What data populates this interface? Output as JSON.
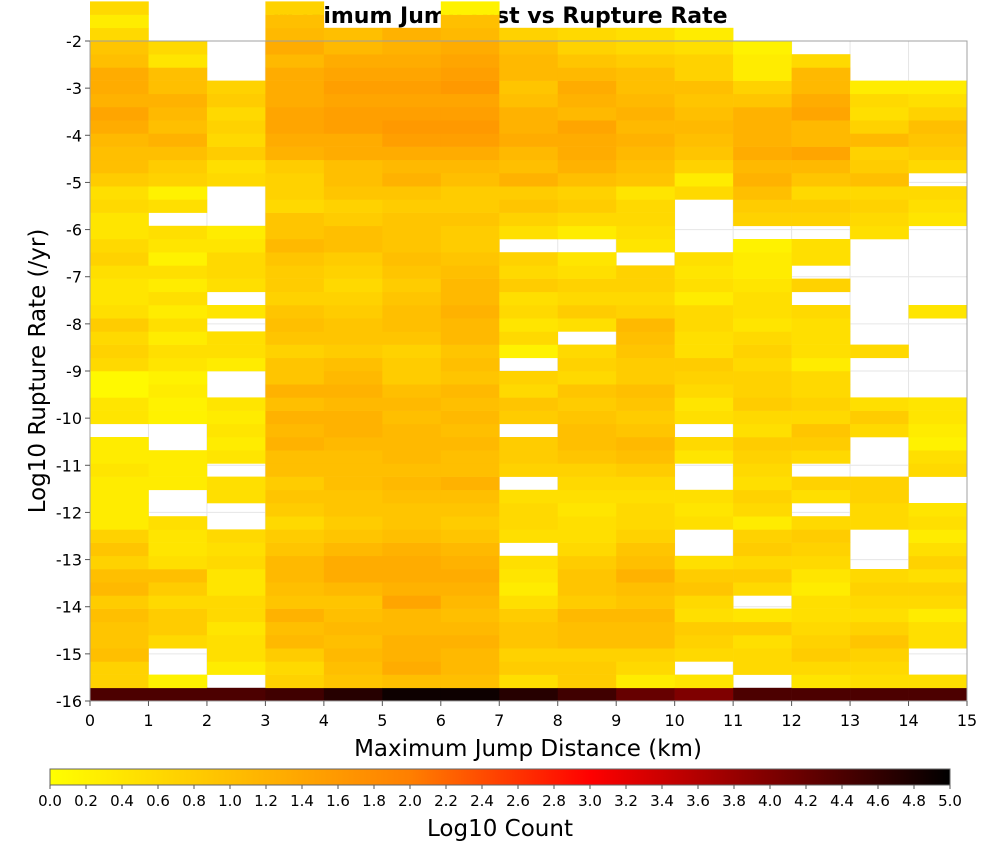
{
  "chart_data": {
    "type": "heatmap",
    "title": "Maximum Jump Dist vs Rupture Rate",
    "xlabel": "Maximum Jump Distance (km)",
    "ylabel": "Log10 Rupture Rate (/yr)",
    "xlim": [
      0,
      15
    ],
    "ylim": [
      -16,
      -2
    ],
    "x_ticks": [
      "0",
      "1",
      "2",
      "3",
      "4",
      "5",
      "6",
      "7",
      "8",
      "9",
      "10",
      "11",
      "12",
      "13",
      "14",
      "15"
    ],
    "y_ticks": [
      "-2",
      "-3",
      "-4",
      "-5",
      "-6",
      "-7",
      "-8",
      "-9",
      "-10",
      "-11",
      "-12",
      "-13",
      "-14",
      "-15",
      "-16"
    ],
    "x_bin_width": 1,
    "y_bin_height": 0.28,
    "y_bin_start": -16,
    "colorbar": {
      "label": "Log10 Count",
      "range": [
        0,
        5
      ],
      "ticks": [
        "0.0",
        "0.2",
        "0.4",
        "0.6",
        "0.8",
        "1.0",
        "1.2",
        "1.4",
        "1.6",
        "1.8",
        "2.0",
        "2.2",
        "2.4",
        "2.6",
        "2.8",
        "3.0",
        "3.2",
        "3.4",
        "3.6",
        "3.8",
        "4.0",
        "4.2",
        "4.4",
        "4.6",
        "4.8",
        "5.0"
      ],
      "colors": [
        "#ffff00",
        "#ffbf00",
        "#ff7f00",
        "#ff0000",
        "#7f0000",
        "#000000"
      ]
    },
    "columns": [
      {
        "x": 0,
        "values": [
          4.4,
          0.7,
          0.7,
          1.0,
          0.9,
          0.9,
          1.0,
          0.8,
          1.1,
          1.0,
          0.7,
          0.9,
          0.7,
          0.3,
          0.3,
          0.3,
          0.3,
          0.4,
          0.3,
          0.3,
          null,
          0.4,
          0.4,
          0.1,
          0.1,
          0.6,
          0.7,
          0.6,
          0.8,
          0.5,
          0.4,
          0.4,
          0.5,
          0.7,
          0.6,
          0.4,
          0.4,
          0.6,
          0.5,
          0.8,
          1.0,
          1.0,
          1.1,
          1.3,
          1.4,
          1.2,
          1.3,
          1.3,
          1.0,
          0.9,
          0.6,
          0.3,
          0.6
        ]
      },
      {
        "x": 1,
        "values": [
          4.4,
          0.2,
          null,
          null,
          0.6,
          0.8,
          0.8,
          0.6,
          0.8,
          1.0,
          0.5,
          0.4,
          0.4,
          0.5,
          null,
          null,
          0.3,
          0.3,
          0.3,
          null,
          null,
          0.2,
          0.2,
          0.3,
          0.2,
          0.4,
          0.5,
          0.3,
          0.5,
          0.3,
          0.5,
          0.3,
          0.5,
          0.2,
          0.4,
          0.5,
          null,
          0.5,
          0.2,
          0.7,
          0.8,
          1.0,
          1.2,
          1.0,
          1.1,
          1.2,
          1.0,
          1.0,
          0.4,
          0.6
        ]
      },
      {
        "x": 2,
        "values": [
          4.4,
          null,
          0.3,
          0.5,
          0.5,
          0.4,
          0.6,
          0.6,
          0.4,
          0.4,
          0.6,
          0.5,
          0.6,
          null,
          null,
          0.5,
          0.5,
          null,
          0.4,
          0.3,
          0.4,
          0.3,
          0.4,
          null,
          null,
          0.3,
          0.5,
          0.5,
          null,
          0.4,
          null,
          0.5,
          0.6,
          0.6,
          0.4,
          0.3,
          null,
          null,
          null,
          0.6,
          0.5,
          0.8,
          0.6,
          0.7,
          0.6,
          0.8,
          0.7
        ]
      },
      {
        "x": 3,
        "values": [
          4.5,
          0.7,
          0.6,
          0.8,
          1.1,
          1.0,
          1.2,
          0.9,
          1.0,
          1.1,
          1.1,
          0.9,
          0.8,
          0.6,
          0.8,
          0.9,
          0.8,
          1.0,
          1.0,
          1.2,
          1.1,
          1.2,
          1.0,
          1.2,
          0.9,
          0.9,
          0.7,
          0.9,
          1.0,
          0.9,
          0.7,
          0.8,
          0.8,
          0.9,
          1.1,
          0.9,
          0.9,
          0.6,
          0.7,
          0.7,
          0.8,
          1.2,
          1.3,
          1.4,
          1.4,
          1.3,
          1.3,
          1.3,
          1.1,
          1.3,
          1.1,
          1.0,
          0.7
        ]
      },
      {
        "x": 4,
        "values": [
          4.7,
          0.9,
          1.0,
          1.1,
          1.0,
          1.1,
          1.0,
          0.9,
          1.1,
          1.3,
          1.3,
          1.1,
          0.9,
          0.8,
          0.9,
          0.9,
          1.0,
          1.0,
          1.0,
          1.1,
          1.2,
          1.2,
          1.1,
          1.2,
          1.1,
          1.0,
          0.8,
          0.9,
          0.9,
          0.8,
          0.7,
          0.6,
          0.7,
          0.8,
          1.0,
          1.0,
          0.8,
          0.7,
          0.9,
          1.0,
          1.0,
          1.3,
          1.3,
          1.5,
          1.5,
          1.4,
          1.5,
          1.4,
          1.3,
          1.1,
          1.0
        ]
      },
      {
        "x": 5,
        "values": [
          4.9,
          1.0,
          1.3,
          1.2,
          1.2,
          1.1,
          1.1,
          1.4,
          1.2,
          1.3,
          1.3,
          1.2,
          1.0,
          0.9,
          0.9,
          1.0,
          1.1,
          1.0,
          1.1,
          1.1,
          1.1,
          1.0,
          1.1,
          1.0,
          0.8,
          0.8,
          0.7,
          0.9,
          1.0,
          1.0,
          0.9,
          0.8,
          0.9,
          1.0,
          0.9,
          0.9,
          0.9,
          0.8,
          0.9,
          1.2,
          1.1,
          1.3,
          1.5,
          1.6,
          1.5,
          1.4,
          1.5,
          1.4,
          1.3,
          1.2,
          1.2
        ]
      },
      {
        "x": 6,
        "values": [
          4.9,
          1.0,
          1.1,
          1.1,
          1.2,
          1.1,
          1.0,
          1.1,
          1.2,
          1.3,
          1.2,
          1.1,
          0.9,
          0.8,
          0.9,
          1.0,
          1.2,
          1.0,
          1.0,
          1.1,
          1.0,
          1.1,
          1.0,
          1.1,
          0.9,
          1.0,
          0.9,
          1.1,
          1.1,
          1.2,
          1.1,
          1.1,
          1.0,
          0.9,
          0.8,
          0.8,
          0.9,
          0.8,
          0.8,
          1.0,
          1.1,
          1.3,
          1.5,
          1.6,
          1.5,
          1.4,
          1.6,
          1.5,
          1.4,
          1.3,
          1.1,
          1.0,
          0.2
        ]
      },
      {
        "x": 7,
        "values": [
          4.7,
          0.5,
          0.8,
          0.7,
          0.9,
          0.9,
          0.8,
          0.5,
          0.3,
          0.4,
          0.5,
          null,
          0.5,
          0.6,
          0.6,
          0.5,
          null,
          0.7,
          0.8,
          0.8,
          null,
          0.8,
          0.9,
          0.6,
          0.7,
          null,
          0.2,
          0.6,
          0.4,
          0.6,
          0.5,
          0.8,
          0.6,
          0.7,
          null,
          0.5,
          0.7,
          0.9,
          0.8,
          1.2,
          1.0,
          1.1,
          1.3,
          1.2,
          1.2,
          1.0,
          0.9,
          1.1,
          1.1,
          1.0,
          0.7
        ]
      },
      {
        "x": 8,
        "values": [
          4.5,
          0.8,
          0.8,
          0.7,
          1.0,
          1.0,
          1.1,
          0.8,
          0.9,
          0.9,
          0.8,
          0.6,
          0.5,
          0.5,
          0.4,
          0.5,
          0.6,
          0.7,
          0.9,
          1.0,
          1.0,
          0.9,
          0.8,
          0.9,
          0.6,
          0.7,
          0.6,
          null,
          0.5,
          0.8,
          0.6,
          0.7,
          0.5,
          0.4,
          null,
          0.3,
          0.6,
          0.8,
          0.7,
          1.0,
          1.2,
          1.3,
          1.3,
          1.4,
          1.1,
          1.2,
          1.3,
          1.1,
          0.9,
          0.7,
          0.6
        ]
      },
      {
        "x": 9,
        "values": [
          4.2,
          0.3,
          0.6,
          0.7,
          1.0,
          1.0,
          1.1,
          0.9,
          1.0,
          1.2,
          1.0,
          0.9,
          0.7,
          0.6,
          0.6,
          0.5,
          0.6,
          0.8,
          1.0,
          1.1,
          0.9,
          0.8,
          0.9,
          1.0,
          0.8,
          0.8,
          0.9,
          1.0,
          1.1,
          0.7,
          0.6,
          0.7,
          0.7,
          null,
          0.4,
          0.5,
          0.6,
          0.6,
          0.4,
          0.9,
          1.0,
          1.1,
          1.2,
          1.1,
          1.2,
          1.1,
          1.0,
          1.0,
          0.8,
          0.6,
          0.5
        ]
      },
      {
        "x": 10,
        "values": [
          4.0,
          0.4,
          null,
          0.6,
          0.7,
          0.8,
          0.5,
          0.6,
          0.9,
          0.8,
          0.5,
          null,
          null,
          0.5,
          0.4,
          0.5,
          null,
          null,
          0.4,
          0.6,
          null,
          0.5,
          0.4,
          0.6,
          0.7,
          0.8,
          0.5,
          0.5,
          0.6,
          0.6,
          0.3,
          0.5,
          0.4,
          0.5,
          null,
          null,
          null,
          null,
          0.6,
          0.3,
          0.7,
          0.9,
          1.0,
          1.1,
          1.0,
          0.9,
          1.0,
          0.7,
          0.7,
          0.5,
          0.3
        ]
      },
      {
        "x": 11,
        "values": [
          4.4,
          null,
          0.6,
          0.6,
          0.5,
          0.8,
          0.4,
          null,
          0.6,
          0.8,
          0.6,
          0.8,
          0.7,
          0.3,
          0.6,
          0.7,
          0.5,
          0.6,
          0.7,
          0.8,
          0.5,
          0.6,
          0.8,
          0.7,
          0.7,
          0.6,
          0.7,
          0.6,
          0.4,
          0.5,
          0.5,
          0.4,
          0.3,
          0.3,
          0.2,
          null,
          0.7,
          0.8,
          1.0,
          1.2,
          1.1,
          1.3,
          1.2,
          1.2,
          1.2,
          0.9,
          0.7,
          0.3,
          0.3,
          0.2
        ]
      },
      {
        "x": 12,
        "values": [
          4.4,
          0.4,
          0.6,
          0.8,
          0.7,
          0.6,
          0.5,
          0.5,
          0.3,
          0.4,
          0.6,
          0.7,
          0.8,
          0.6,
          null,
          0.5,
          0.7,
          null,
          0.6,
          0.8,
          0.9,
          0.6,
          0.7,
          0.6,
          0.6,
          0.3,
          0.5,
          0.5,
          0.5,
          0.6,
          null,
          0.7,
          null,
          0.5,
          0.5,
          null,
          0.7,
          0.8,
          0.6,
          0.9,
          1.1,
          1.4,
          1.1,
          1.1,
          1.4,
          1.3,
          1.1,
          1.1,
          0.6
        ]
      },
      {
        "x": 13,
        "values": [
          4.4,
          0.5,
          0.6,
          0.7,
          0.9,
          0.7,
          0.5,
          0.6,
          0.7,
          0.6,
          null,
          null,
          null,
          0.6,
          0.6,
          0.7,
          0.7,
          null,
          null,
          null,
          0.6,
          0.8,
          0.5,
          null,
          null,
          null,
          0.6,
          null,
          null,
          null,
          null,
          null,
          null,
          null,
          null,
          0.5,
          0.6,
          0.7,
          0.6,
          1.0,
          0.8,
          0.7,
          1.1,
          0.7,
          0.5,
          0.6,
          0.3
        ]
      },
      {
        "x": 14,
        "values": [
          4.4,
          0.5,
          null,
          null,
          0.5,
          0.5,
          0.3,
          0.6,
          0.7,
          0.5,
          0.7,
          0.5,
          0.3,
          0.5,
          0.4,
          null,
          null,
          0.6,
          0.5,
          0.2,
          0.3,
          0.4,
          0.4,
          null,
          null,
          null,
          null,
          null,
          null,
          0.4,
          null,
          null,
          null,
          null,
          null,
          null,
          0.4,
          0.5,
          0.6,
          null,
          0.6,
          0.8,
          0.9,
          1.0,
          0.7,
          0.5,
          0.3
        ]
      }
    ]
  }
}
